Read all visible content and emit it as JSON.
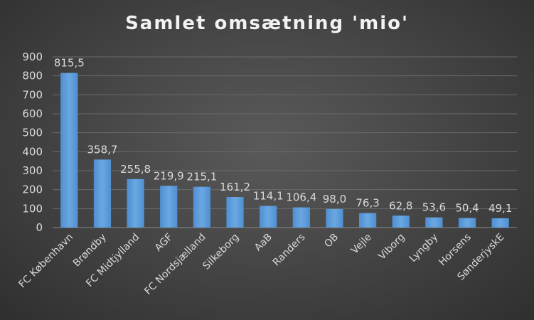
{
  "chart_data": {
    "type": "bar",
    "title": "Samlet omsætning 'mio'",
    "xlabel": "",
    "ylabel": "",
    "ylim": [
      0,
      900
    ],
    "yticks": [
      0,
      100,
      200,
      300,
      400,
      500,
      600,
      700,
      800,
      900
    ],
    "grid": true,
    "legend": "none",
    "bar_color": "#5b9bd5",
    "categories": [
      "FC København",
      "Brøndby",
      "FC Midtjylland",
      "AGF",
      "FC Nordsjælland",
      "Silkeborg",
      "AaB",
      "Randers",
      "OB",
      "Vejle",
      "Viborg",
      "Lyngby",
      "Horsens",
      "SønderjyskE"
    ],
    "values": [
      815.5,
      358.7,
      255.8,
      219.9,
      215.1,
      161.2,
      114.1,
      106.4,
      98.0,
      76.3,
      62.8,
      53.6,
      50.4,
      49.1
    ],
    "data_labels": [
      "815,5",
      "358,7",
      "255,8",
      "219,9",
      "215,1",
      "161,2",
      "114,1",
      "106,4",
      "98,0",
      "76,3",
      "62,8",
      "53,6",
      "50,4",
      "49,1"
    ]
  }
}
